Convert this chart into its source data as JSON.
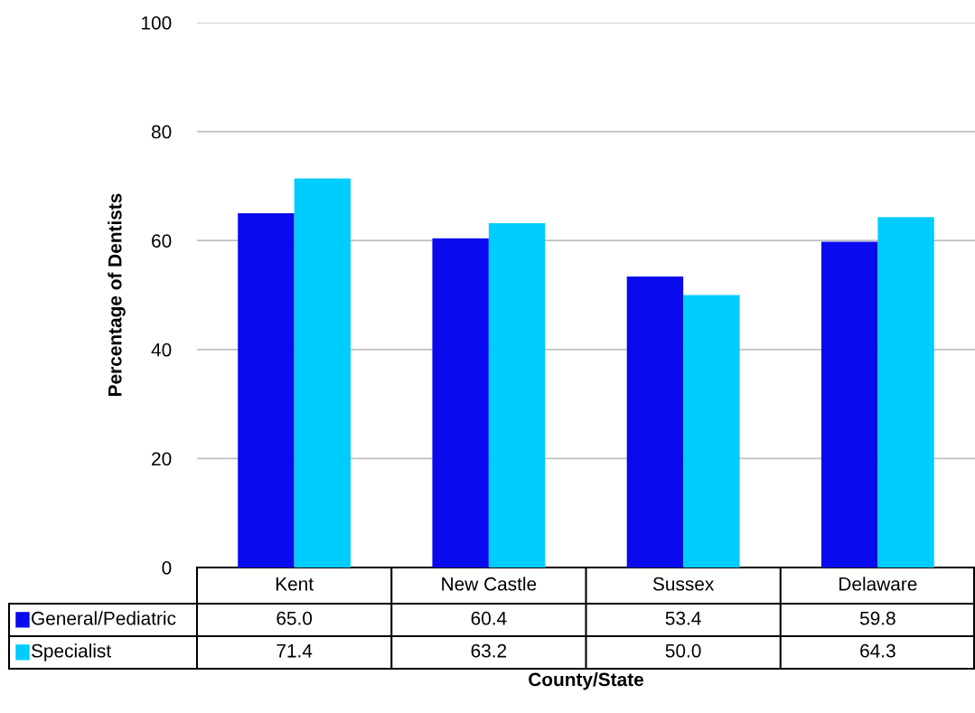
{
  "chart_data": {
    "type": "bar",
    "xlabel": "County/State",
    "ylabel": "Percentage of Dentists",
    "categories": [
      "Kent",
      "New Castle",
      "Sussex",
      "Delaware"
    ],
    "series": [
      {
        "name": "General/Pediatric",
        "color": "#0a0aee",
        "values": [
          65.0,
          60.4,
          53.4,
          59.8
        ],
        "value_labels": [
          "65.0",
          "60.4",
          "53.4",
          "59.8"
        ]
      },
      {
        "name": "Specialist",
        "color": "#00ccff",
        "values": [
          71.4,
          63.2,
          50.0,
          64.3
        ],
        "value_labels": [
          "71.4",
          "63.2",
          "50.0",
          "64.3"
        ]
      }
    ],
    "ylim": [
      0,
      100
    ],
    "yticks": [
      0,
      20,
      40,
      60,
      80,
      100
    ],
    "grid": "y",
    "legend": "bottom"
  }
}
